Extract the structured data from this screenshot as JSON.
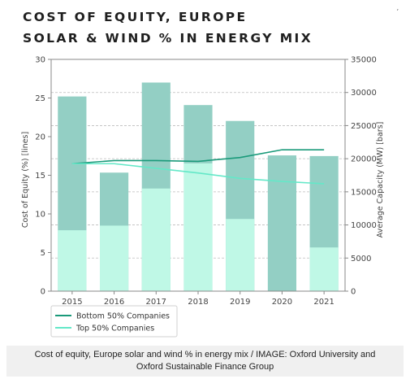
{
  "titles": {
    "line1": "COST OF EQUITY, EUROPE",
    "line2": "SOLAR & WIND % IN ENERGY MIX"
  },
  "caption": {
    "line1": "Cost of equity, Europe solar and wind % in energy mix / IMAGE: Oxford University and",
    "line2": "Oxford Sustainable Finance Group"
  },
  "colors": {
    "bottom_bar": "#93cfc4",
    "top_bar": "#bff8e6",
    "bottom_line": "#1a9a7a",
    "top_line": "#64e8c8",
    "grid": "#bdbdbd",
    "axis": "#888888",
    "text": "#444444"
  },
  "chart_data": {
    "type": "bar",
    "categories": [
      "2015",
      "2016",
      "2017",
      "2018",
      "2019",
      "2020",
      "2021"
    ],
    "bar_series": [
      {
        "name": "Bottom 50% Companies",
        "values": [
          29400,
          17900,
          31500,
          28100,
          25700,
          20500,
          20400
        ],
        "axis": "right"
      },
      {
        "name": "Top 50% Companies",
        "values": [
          9200,
          9900,
          15500,
          19300,
          10900,
          0,
          6600
        ],
        "axis": "right"
      }
    ],
    "line_series": [
      {
        "name": "Bottom 50% Companies",
        "values": [
          16.5,
          16.9,
          16.9,
          16.8,
          17.3,
          18.3,
          18.3
        ],
        "axis": "left"
      },
      {
        "name": "Top 50% Companies",
        "values": [
          16.5,
          16.5,
          15.9,
          15.3,
          14.6,
          14.2,
          13.9
        ],
        "axis": "left"
      }
    ],
    "ylabel_left": "Cost of Equity (%) [lines]",
    "ylabel_right": "Average Capacity (MW) [bars]",
    "ylim_left": [
      0,
      30
    ],
    "ylim_right": [
      0,
      35000
    ],
    "yticks_left": [
      0,
      5,
      10,
      15,
      20,
      25,
      30
    ],
    "yticks_right": [
      0,
      5000,
      10000,
      15000,
      20000,
      25000,
      30000,
      35000
    ],
    "grid": true,
    "legend": [
      "Bottom 50% Companies",
      "Top 50% Companies"
    ],
    "legend_position": "bottom-left"
  }
}
